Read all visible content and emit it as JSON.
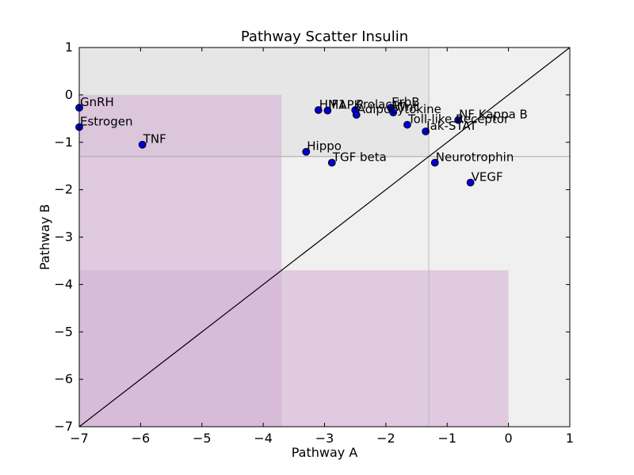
{
  "chart_data": {
    "type": "scatter",
    "title": "Pathway Scatter Insulin",
    "xlabel": "Pathway A",
    "ylabel": "Pathway B",
    "xlim": [
      -7,
      1
    ],
    "ylim": [
      -7,
      1
    ],
    "xticks": [
      -7,
      -6,
      -5,
      -4,
      -3,
      -2,
      -1,
      0,
      1
    ],
    "yticks": [
      -7,
      -6,
      -5,
      -4,
      -3,
      -2,
      -1,
      0,
      1
    ],
    "xtick_labels": [
      "−7",
      "−6",
      "−5",
      "−4",
      "−3",
      "−2",
      "−1",
      "0",
      "1"
    ],
    "ytick_labels": [
      "−7",
      "−6",
      "−5",
      "−4",
      "−3",
      "−2",
      "−1",
      "0",
      "1"
    ],
    "grid": false,
    "diagonal_line": true,
    "threshold_lines": {
      "x": -1.3,
      "y": -1.3
    },
    "shaded_regions": [
      {
        "name": "upper-right-light",
        "x": [
          -7,
          1
        ],
        "y": [
          -7,
          1
        ],
        "color": "#f0f0f0"
      },
      {
        "name": "center-gray",
        "x": [
          -7,
          -1.3
        ],
        "y": [
          -1.3,
          1
        ],
        "color": "#e6e6e6"
      },
      {
        "name": "purple-top-left",
        "x": [
          -7,
          -3.7
        ],
        "y": [
          -7,
          0
        ],
        "color": "#d4b0d4"
      },
      {
        "name": "purple-bottom-right",
        "x": [
          -7,
          0
        ],
        "y": [
          -7,
          -3.7
        ],
        "color": "#d4b0d4"
      }
    ],
    "points": [
      {
        "label": "GnRH",
        "x": -7.0,
        "y": -0.27
      },
      {
        "label": "Estrogen",
        "x": -7.0,
        "y": -0.68
      },
      {
        "label": "TNF",
        "x": -5.97,
        "y": -1.05
      },
      {
        "label": "HIF1",
        "x": -3.1,
        "y": -0.32
      },
      {
        "label": "MAPK",
        "x": -2.95,
        "y": -0.33
      },
      {
        "label": "Prolactin",
        "x": -2.5,
        "y": -0.32
      },
      {
        "label": "Adipocytokine",
        "x": -2.48,
        "y": -0.42
      },
      {
        "label": "ErbB",
        "x": -1.92,
        "y": -0.27
      },
      {
        "label": "Wnt",
        "x": -1.88,
        "y": -0.37
      },
      {
        "label": "Toll-like Receptor",
        "x": -1.65,
        "y": -0.63
      },
      {
        "label": "Jak-STAT",
        "x": -1.35,
        "y": -0.77
      },
      {
        "label": "NF Kappa B",
        "x": -0.82,
        "y": -0.53
      },
      {
        "label": "Hippo",
        "x": -3.3,
        "y": -1.2
      },
      {
        "label": "TGF beta",
        "x": -2.88,
        "y": -1.43
      },
      {
        "label": "Neurotrophin",
        "x": -1.2,
        "y": -1.43
      },
      {
        "label": "VEGF",
        "x": -0.62,
        "y": -1.85
      }
    ],
    "point_color": "#0000cc"
  }
}
